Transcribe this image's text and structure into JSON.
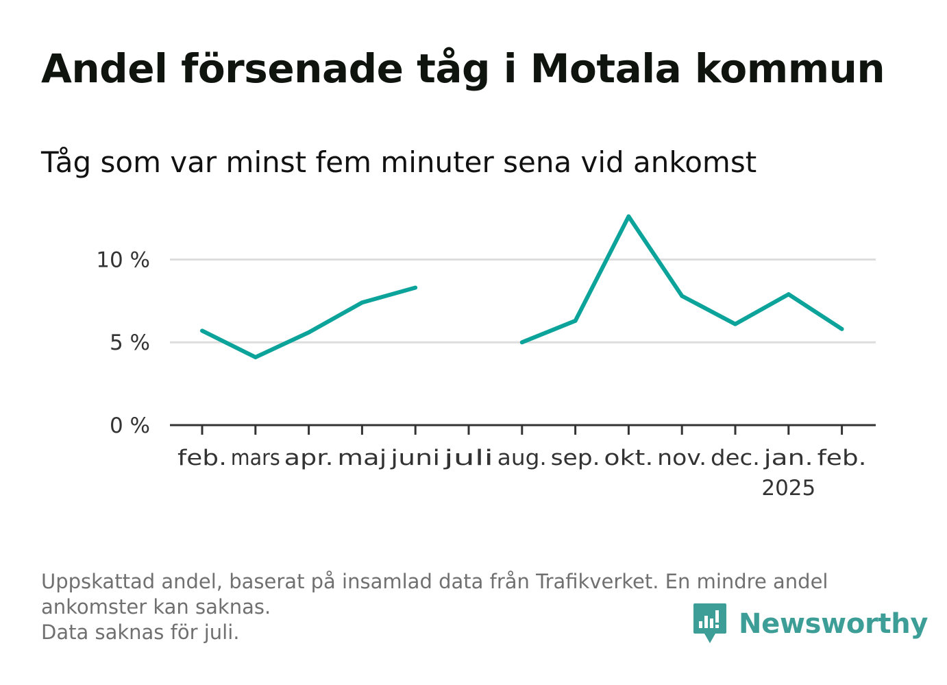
{
  "title": "Andel försenade tåg i Motala kommun",
  "subtitle": "Tåg som var minst fem minuter sena vid ankomst",
  "footnote": {
    "line1": "Uppskattad andel, baserat på insamlad data från Trafikverket. En mindre andel",
    "line2": "ankomster kan saknas.",
    "line3": "Data saknas för juli."
  },
  "brand": {
    "name": "Newsworthy",
    "icon": "newsworthy-logo-icon",
    "color": "#3c9e96"
  },
  "chart_data": {
    "type": "line",
    "categories": [
      "feb.",
      "mars",
      "apr.",
      "maj",
      "juni",
      "juli",
      "aug.",
      "sep.",
      "okt.",
      "nov.",
      "dec.",
      "jan.",
      "feb."
    ],
    "year_labels": [
      {
        "index": 11,
        "label": "2025"
      }
    ],
    "series": [
      {
        "values": [
          5.7,
          4.1,
          5.6,
          7.4,
          8.3,
          null,
          5.0,
          6.3,
          12.6,
          7.8,
          6.1,
          7.9,
          5.8
        ]
      }
    ],
    "y_ticks": [
      {
        "value": 0,
        "label": "0 %"
      },
      {
        "value": 5,
        "label": "5 %"
      },
      {
        "value": 10,
        "label": "10 %"
      }
    ],
    "ylim": [
      0,
      13
    ],
    "grid": true,
    "legend": "none",
    "colors": {
      "line": "#0ca39b",
      "grid": "#dddddd",
      "axis": "#333333"
    }
  }
}
